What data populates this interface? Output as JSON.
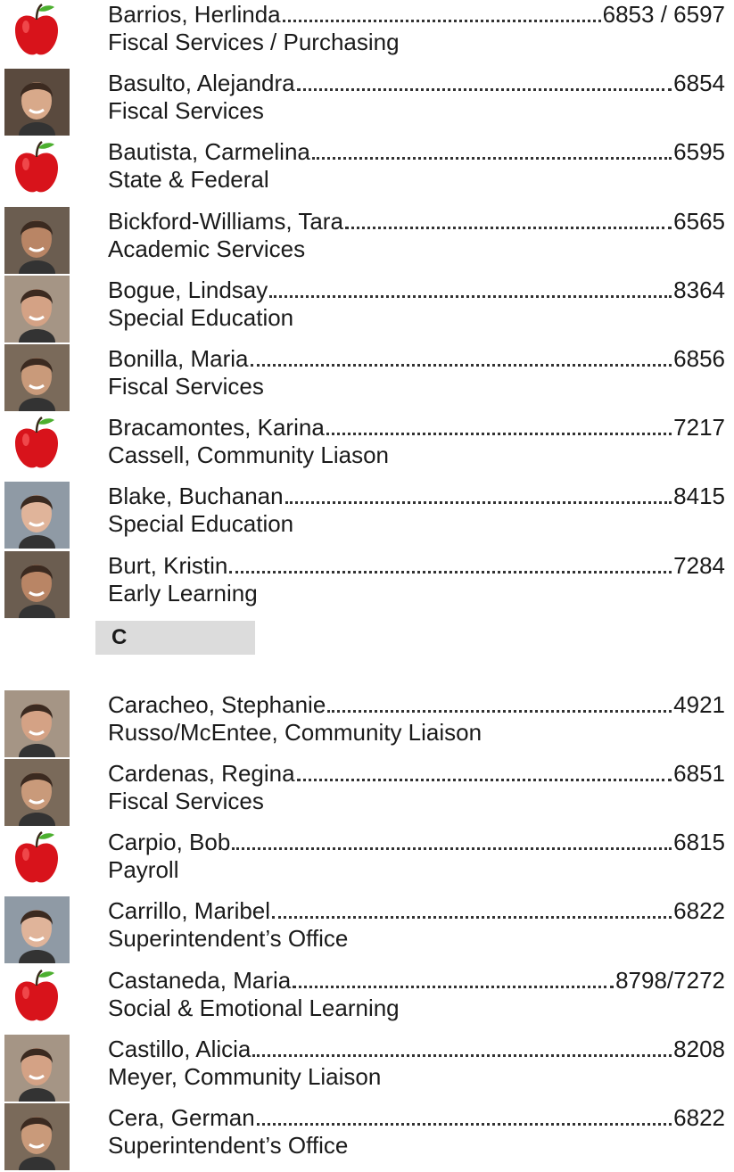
{
  "groups": [
    {
      "entries": [
        {
          "icon": "apple",
          "name": "Barrios, Herlinda",
          "ext": "6853 / 6597",
          "dept": "Fiscal Services / Purchasing"
        },
        {
          "icon": "photo",
          "name": "Basulto, Alejandra",
          "ext": "6854",
          "dept": "Fiscal Services"
        },
        {
          "icon": "apple",
          "name": "Bautista, Carmelina",
          "ext": "6595",
          "dept": "State & Federal"
        },
        {
          "icon": "photo",
          "name": "Bickford-Williams, Tara",
          "ext": "6565",
          "dept": "Academic Services"
        },
        {
          "icon": "photo",
          "name": "Bogue, Lindsay",
          "ext": "8364",
          "dept": "Special Education"
        },
        {
          "icon": "photo",
          "name": "Bonilla, Maria",
          "ext": "6856",
          "dept": "Fiscal Services"
        },
        {
          "icon": "apple",
          "name": "Bracamontes, Karina",
          "ext": "7217",
          "dept": "Cassell, Community Liason"
        },
        {
          "icon": "photo",
          "name": "Blake, Buchanan",
          "ext": "8415",
          "dept": "Special Education"
        },
        {
          "icon": "photo",
          "name": "Burt, Kristin",
          "ext": "7284",
          "dept": "Early Learning"
        }
      ]
    },
    {
      "heading": "C",
      "entries": [
        {
          "icon": "photo",
          "name": "Caracheo, Stephanie",
          "ext": "4921",
          "dept": "Russo/McEntee, Community Liaison"
        },
        {
          "icon": "photo",
          "name": "Cardenas, Regina",
          "ext": "6851",
          "dept": "Fiscal Services"
        },
        {
          "icon": "apple",
          "name": "Carpio, Bob",
          "ext": "6815",
          "dept": "Payroll"
        },
        {
          "icon": "photo",
          "name": "Carrillo, Maribel",
          "ext": "6822",
          "dept": "Superintendent’s Office"
        },
        {
          "icon": "apple",
          "name": "Castaneda, Maria",
          "ext": "8798/7272",
          "dept": "Social & Emotional Learning"
        },
        {
          "icon": "photo",
          "name": "Castillo, Alicia",
          "ext": "8208",
          "dept": "Meyer, Community Liaison"
        },
        {
          "icon": "photo",
          "name": "Cera, German",
          "ext": "6822",
          "dept": "Superintendent’s Office"
        }
      ]
    }
  ]
}
